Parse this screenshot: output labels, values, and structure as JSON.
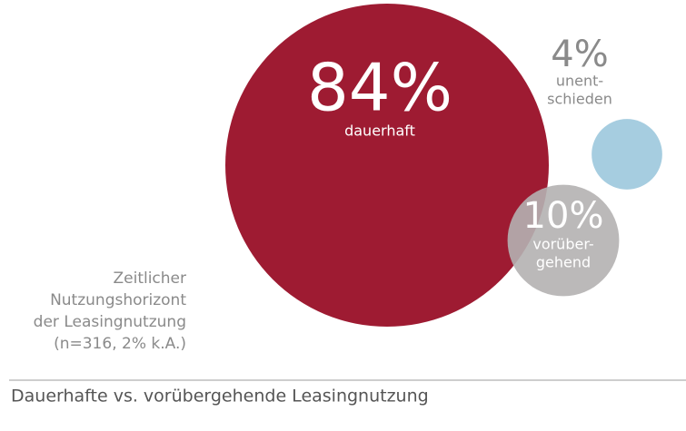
{
  "chart_data": {
    "type": "bubble",
    "title": "Dauerhafte vs. vorübergehende Leasingnutzung",
    "annotation": [
      "Zeitlicher",
      "Nutzungshorizont",
      "der Leasingnutzung",
      "(n=316, 2% k.A.)"
    ],
    "categories": [
      [
        "dauerhaft"
      ],
      [
        "unent-",
        "schieden"
      ],
      [
        "vorüber-",
        "gehend"
      ]
    ],
    "values": [
      84,
      4,
      10
    ],
    "value_labels": [
      "84%",
      "4%",
      "10%"
    ],
    "colors": [
      "#9e1b32",
      "#a6cde0",
      "#b4b1b1"
    ]
  }
}
